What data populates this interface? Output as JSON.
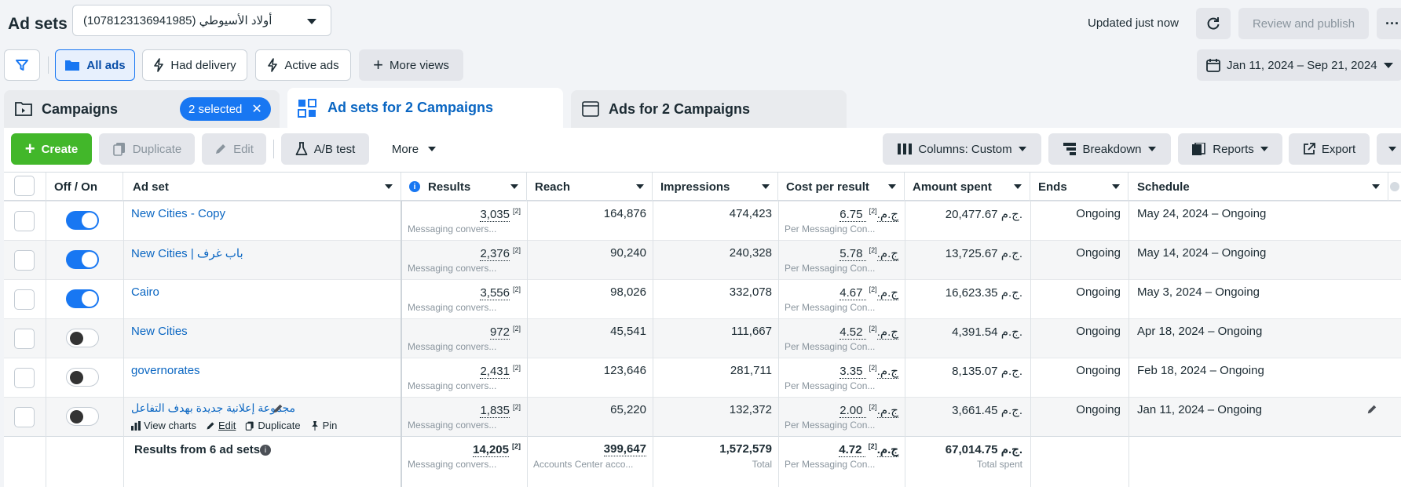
{
  "page_title": "Ad sets",
  "account_selector": "أولاد الأسيوطي (1078123136941985)",
  "updated_text": "Updated just now",
  "review_button": "Review and publish",
  "filters": {
    "all_ads": "All ads",
    "had_delivery": "Had delivery",
    "active_ads": "Active ads",
    "more_views": "More views"
  },
  "date_range": "Jan 11, 2024 – Sep 21, 2024",
  "tabs": {
    "campaigns": "Campaigns",
    "selected_badge": "2 selected",
    "adsets": "Ad sets for 2 Campaigns",
    "ads": "Ads for 2 Campaigns"
  },
  "toolbar": {
    "create": "Create",
    "duplicate": "Duplicate",
    "edit": "Edit",
    "ab_test": "A/B test",
    "more": "More",
    "columns": "Columns: Custom",
    "breakdown": "Breakdown",
    "reports": "Reports",
    "export": "Export"
  },
  "columns": {
    "offon": "Off / On",
    "adset": "Ad set",
    "results": "Results",
    "reach": "Reach",
    "impressions": "Impressions",
    "cost": "Cost per result",
    "spent": "Amount spent",
    "ends": "Ends",
    "schedule": "Schedule"
  },
  "rows": [
    {
      "name": "New Cities - Copy",
      "on": true,
      "results": "3,035",
      "results_sub": "Messaging convers...",
      "reach": "164,876",
      "impressions": "474,423",
      "cost": "6.75 ج.م.",
      "cost_sub": "Per Messaging Con...",
      "spent": "20,477.67 ج.م.",
      "ends": "Ongoing",
      "schedule": "May 24, 2024 – Ongoing"
    },
    {
      "name": "New Cities | باب غرف",
      "on": true,
      "results": "2,376",
      "results_sub": "Messaging convers...",
      "reach": "90,240",
      "impressions": "240,328",
      "cost": "5.78 ج.م.",
      "cost_sub": "Per Messaging Con...",
      "spent": "13,725.67 ج.م.",
      "ends": "Ongoing",
      "schedule": "May 14, 2024 – Ongoing"
    },
    {
      "name": "Cairo",
      "on": true,
      "results": "3,556",
      "results_sub": "Messaging convers...",
      "reach": "98,026",
      "impressions": "332,078",
      "cost": "4.67 ج.م.",
      "cost_sub": "Per Messaging Con...",
      "spent": "16,623.35 ج.م.",
      "ends": "Ongoing",
      "schedule": "May 3, 2024 – Ongoing"
    },
    {
      "name": "New Cities",
      "on": false,
      "results": "972",
      "results_sub": "Messaging convers...",
      "reach": "45,541",
      "impressions": "111,667",
      "cost": "4.52 ج.م.",
      "cost_sub": "Per Messaging Con...",
      "spent": "4,391.54 ج.م.",
      "ends": "Ongoing",
      "schedule": "Apr 18, 2024 – Ongoing"
    },
    {
      "name": "governorates",
      "on": false,
      "results": "2,431",
      "results_sub": "Messaging convers...",
      "reach": "123,646",
      "impressions": "281,711",
      "cost": "3.35 ج.م.",
      "cost_sub": "Per Messaging Con...",
      "spent": "8,135.07 ج.م.",
      "ends": "Ongoing",
      "schedule": "Feb 18, 2024 – Ongoing"
    },
    {
      "name": "مجموعة إعلانية جديدة بهدف التفاعل",
      "on": false,
      "results": "1,835",
      "results_sub": "Messaging convers...",
      "reach": "65,220",
      "impressions": "132,372",
      "cost": "2.00 ج.م.",
      "cost_sub": "Per Messaging Con...",
      "spent": "3,661.45 ج.م.",
      "ends": "Ongoing",
      "schedule": "Jan 11, 2024 – Ongoing"
    }
  ],
  "row_actions": {
    "view_charts": "View charts",
    "edit": "Edit",
    "duplicate": "Duplicate",
    "pin": "Pin"
  },
  "totals": {
    "label": "Results from 6 ad sets",
    "results": "14,205",
    "results_sub": "Messaging convers...",
    "reach": "399,647",
    "reach_sub": "Accounts Center acco...",
    "impressions": "1,572,579",
    "impressions_sub": "Total",
    "cost": "4.72 ج.م.",
    "cost_sub": "Per Messaging Con...",
    "spent": "67,014.75 ج.م.",
    "spent_sub": "Total spent"
  },
  "footnote_marker": "[2]",
  "colors": {
    "accent": "#1877f2",
    "create": "#42b72a",
    "link": "#0a66c2"
  }
}
